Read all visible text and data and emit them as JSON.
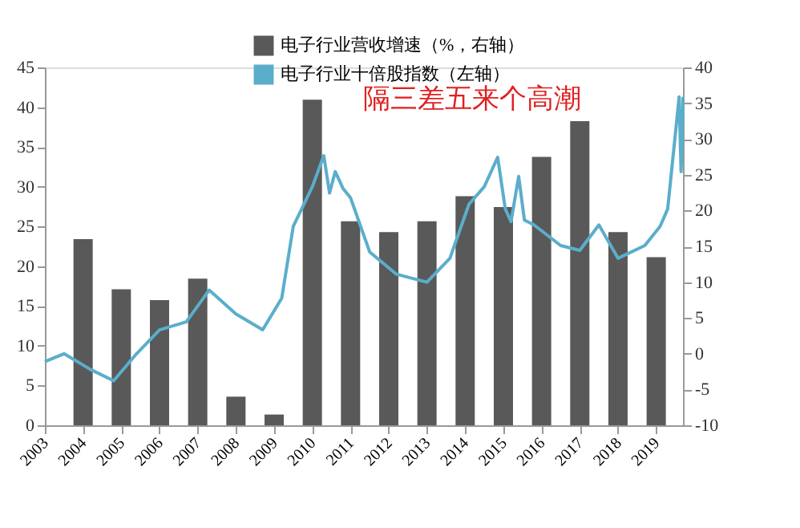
{
  "chart_data": {
    "type": "bar",
    "x": [
      2004,
      2005,
      2006,
      2007,
      2008,
      2009,
      2010,
      2011,
      2012,
      2013,
      2014,
      2015,
      2016,
      2017,
      2018,
      2019
    ],
    "xlim": [
      2003,
      2019.7
    ],
    "xticks": [
      2003,
      2004,
      2005,
      2006,
      2007,
      2008,
      2009,
      2010,
      2011,
      2012,
      2013,
      2014,
      2015,
      2016,
      2017,
      2018,
      2019
    ],
    "series": [
      {
        "name": "电子行业营收增速（%，右轴）",
        "axis": "y2",
        "color": "#595959",
        "base": [
          -10,
          -10,
          -10,
          -10,
          -10,
          -10,
          -10,
          -10,
          -10,
          -10,
          -10,
          -10,
          -10,
          -10,
          -10,
          -10
        ],
        "values": [
          26,
          19,
          17.5,
          20.5,
          4,
          1.5,
          45.5,
          28.5,
          27,
          28.5,
          32,
          30.5,
          37.5,
          42.5,
          27,
          23.5
        ]
      },
      {
        "name": "电子行业十倍股指数（左轴）",
        "type": "line",
        "axis": "y",
        "color": "#5aaecb",
        "x": [
          2003,
          2003.5,
          2004.2,
          2004.8,
          2005.4,
          2006,
          2006.7,
          2007.3,
          2008,
          2008.7,
          2009.2,
          2009.5,
          2010.0,
          2010.3,
          2010.45,
          2010.6,
          2010.8,
          2011.0,
          2011.5,
          2012.2,
          2013.0,
          2013.6,
          2014.1,
          2014.5,
          2014.85,
          2015.05,
          2015.2,
          2015.4,
          2015.55,
          2015.8,
          2016.5,
          2017.0,
          2017.5,
          2018.0,
          2018.7,
          2019.1,
          2019.3,
          2019.6,
          2019.65,
          2019.68,
          2019.7
        ],
        "values": [
          8,
          9,
          7,
          5.6,
          9,
          12,
          13,
          17,
          14,
          12,
          16,
          25,
          30,
          33.9,
          29.2,
          31.9,
          29.8,
          28.6,
          21.8,
          19,
          18,
          21,
          27.8,
          30,
          33.7,
          27.2,
          25.6,
          31.3,
          25.8,
          25.2,
          22.6,
          22,
          25.2,
          21,
          22.6,
          25,
          27.2,
          41.3,
          31.9,
          35.9,
          41.3
        ]
      }
    ],
    "ylim": [
      0,
      45
    ],
    "yticks": [
      0,
      5,
      10,
      15,
      20,
      25,
      30,
      35,
      40,
      45
    ],
    "y2lim": [
      -10,
      40
    ],
    "y2ticks": [
      -10,
      -5,
      0,
      5,
      10,
      15,
      20,
      25,
      30,
      35,
      40
    ],
    "annotations": [
      "隔三差五来个高潮"
    ],
    "legend": "top",
    "grid": false
  }
}
